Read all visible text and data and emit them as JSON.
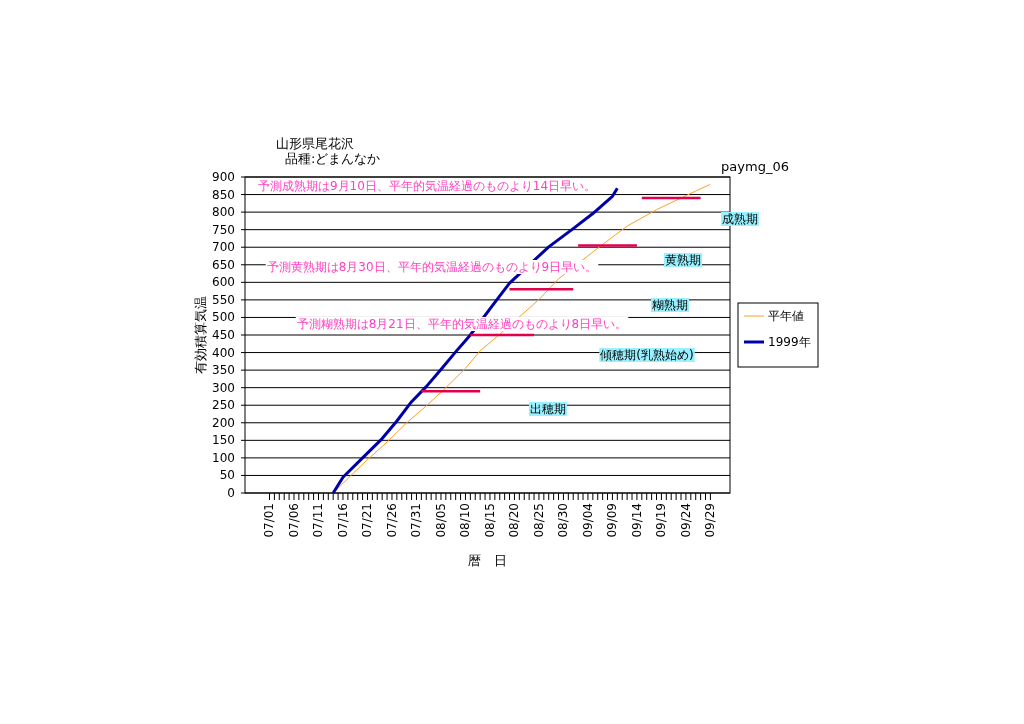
{
  "chart_data": {
    "type": "line",
    "title": "山形県尾花沢",
    "subtitle": "品種:どまんなか",
    "xlabel": "暦　日",
    "ylabel": "有効積算気温",
    "annotations": [
      "paymg_06",
      "予測成熟期は9月10日、平年的気温経過のものより14日早い。",
      "予測黄熟期は8月30日、平年的気温経過のものより9日早い。",
      "予測糊熟期は8月21日、平年的気温経過のものより8日早い。",
      "出穂期",
      "傾穂期(乳熟始め)",
      "糊熟期",
      "黄熟期",
      "成熟期"
    ],
    "xlim": [
      "--06-26",
      "--10-03"
    ],
    "ylim": [
      0,
      900
    ],
    "yticks": [
      0,
      50,
      100,
      150,
      200,
      250,
      300,
      350,
      400,
      450,
      500,
      550,
      600,
      650,
      700,
      750,
      800,
      850,
      900
    ],
    "xticks": [
      {
        "value": "--07-01",
        "label": "07/01"
      },
      {
        "value": "--07-02",
        "label": null
      },
      {
        "value": "--07-03",
        "label": null
      },
      {
        "value": "--07-04",
        "label": null
      },
      {
        "value": "--07-05",
        "label": null
      },
      {
        "value": "--07-06",
        "label": "07/06"
      },
      {
        "value": "--07-07",
        "label": null
      },
      {
        "value": "--07-08",
        "label": null
      },
      {
        "value": "--07-09",
        "label": null
      },
      {
        "value": "--07-10",
        "label": null
      },
      {
        "value": "--07-11",
        "label": "07/11"
      },
      {
        "value": "--07-12",
        "label": null
      },
      {
        "value": "--07-13",
        "label": null
      },
      {
        "value": "--07-14",
        "label": null
      },
      {
        "value": "--07-15",
        "label": null
      },
      {
        "value": "--07-16",
        "label": "07/16"
      },
      {
        "value": "--07-17",
        "label": null
      },
      {
        "value": "--07-18",
        "label": null
      },
      {
        "value": "--07-19",
        "label": null
      },
      {
        "value": "--07-20",
        "label": null
      },
      {
        "value": "--07-21",
        "label": "07/21"
      },
      {
        "value": "--07-22",
        "label": null
      },
      {
        "value": "--07-23",
        "label": null
      },
      {
        "value": "--07-24",
        "label": null
      },
      {
        "value": "--07-25",
        "label": null
      },
      {
        "value": "--07-26",
        "label": "07/26"
      },
      {
        "value": "--07-27",
        "label": null
      },
      {
        "value": "--07-28",
        "label": null
      },
      {
        "value": "--07-29",
        "label": null
      },
      {
        "value": "--07-30",
        "label": null
      },
      {
        "value": "--07-31",
        "label": "07/31"
      },
      {
        "value": "--08-01",
        "label": null
      },
      {
        "value": "--08-02",
        "label": null
      },
      {
        "value": "--08-03",
        "label": null
      },
      {
        "value": "--08-04",
        "label": null
      },
      {
        "value": "--08-05",
        "label": "08/05"
      },
      {
        "value": "--08-06",
        "label": null
      },
      {
        "value": "--08-07",
        "label": null
      },
      {
        "value": "--08-08",
        "label": null
      },
      {
        "value": "--08-09",
        "label": null
      },
      {
        "value": "--08-10",
        "label": "08/10"
      },
      {
        "value": "--08-11",
        "label": null
      },
      {
        "value": "--08-12",
        "label": null
      },
      {
        "value": "--08-13",
        "label": null
      },
      {
        "value": "--08-14",
        "label": null
      },
      {
        "value": "--08-15",
        "label": "08/15"
      },
      {
        "value": "--08-16",
        "label": null
      },
      {
        "value": "--08-17",
        "label": null
      },
      {
        "value": "--08-18",
        "label": null
      },
      {
        "value": "--08-19",
        "label": null
      },
      {
        "value": "--08-20",
        "label": "08/20"
      },
      {
        "value": "--08-21",
        "label": null
      },
      {
        "value": "--08-22",
        "label": null
      },
      {
        "value": "--08-23",
        "label": null
      },
      {
        "value": "--08-24",
        "label": null
      },
      {
        "value": "--08-25",
        "label": "08/25"
      },
      {
        "value": "--08-26",
        "label": null
      },
      {
        "value": "--08-27",
        "label": null
      },
      {
        "value": "--08-28",
        "label": null
      },
      {
        "value": "--08-29",
        "label": null
      },
      {
        "value": "--08-30",
        "label": "08/30"
      },
      {
        "value": "--08-31",
        "label": null
      },
      {
        "value": "--09-01",
        "label": null
      },
      {
        "value": "--09-02",
        "label": null
      },
      {
        "value": "--09-03",
        "label": null
      },
      {
        "value": "--09-04",
        "label": "09/04"
      },
      {
        "value": "--09-05",
        "label": null
      },
      {
        "value": "--09-06",
        "label": null
      },
      {
        "value": "--09-07",
        "label": null
      },
      {
        "value": "--09-08",
        "label": null
      },
      {
        "value": "--09-09",
        "label": "09/09"
      },
      {
        "value": "--09-10",
        "label": null
      },
      {
        "value": "--09-11",
        "label": null
      },
      {
        "value": "--09-12",
        "label": null
      },
      {
        "value": "--09-13",
        "label": null
      },
      {
        "value": "--09-14",
        "label": "09/14"
      },
      {
        "value": "--09-15",
        "label": null
      },
      {
        "value": "--09-16",
        "label": null
      },
      {
        "value": "--09-17",
        "label": null
      },
      {
        "value": "--09-18",
        "label": null
      },
      {
        "value": "--09-19",
        "label": "09/19"
      },
      {
        "value": "--09-20",
        "label": null
      },
      {
        "value": "--09-21",
        "label": null
      },
      {
        "value": "--09-22",
        "label": null
      },
      {
        "value": "--09-23",
        "label": null
      },
      {
        "value": "--09-24",
        "label": "09/24"
      },
      {
        "value": "--09-25",
        "label": null
      },
      {
        "value": "--09-26",
        "label": null
      },
      {
        "value": "--09-27",
        "label": null
      },
      {
        "value": "--09-28",
        "label": null
      },
      {
        "value": "--09-29",
        "label": "09/29"
      }
    ],
    "grid": "y",
    "legend": "right",
    "series": [
      {
        "name": "平年値",
        "color": "#ffa020",
        "x": [
          "--07-14",
          "--07-18",
          "--07-21",
          "--07-25",
          "--07-29",
          "--08-02",
          "--08-06",
          "--08-10",
          "--08-13",
          "--08-17",
          "--08-25",
          "--08-29",
          "--09-07",
          "--09-12",
          "--09-18",
          "--09-26",
          "--09-29"
        ],
        "values": [
          0,
          55,
          95,
          145,
          200,
          248,
          300,
          355,
          405,
          452,
          551,
          610,
          708,
          760,
          807,
          860,
          879
        ]
      },
      {
        "name": "1999年",
        "color": "#0000a8",
        "x": [
          "--07-14",
          "--07-16",
          "--07-20",
          "--07-24",
          "--07-27",
          "--07-30",
          "--08-02",
          "--08-05",
          "--08-08",
          "--08-11",
          "--08-16",
          "--08-19",
          "--08-27",
          "--09-01",
          "--09-05",
          "--09-09",
          "--09-10"
        ],
        "values": [
          0,
          45,
          100,
          155,
          205,
          260,
          303,
          352,
          402,
          450,
          543,
          598,
          701,
          753,
          796,
          845,
          868
        ]
      },
      {
        "color": "#e0004c",
        "x": [
          "--08-01",
          "--08-13"
        ],
        "values": [
          290,
          290
        ]
      },
      {
        "color": "#e0004c",
        "x": [
          "--08-11",
          "--08-24"
        ],
        "values": [
          450,
          450
        ]
      },
      {
        "color": "#e0004c",
        "x": [
          "--08-19",
          "--09-01"
        ],
        "values": [
          580,
          580
        ]
      },
      {
        "color": "#e0004c",
        "x": [
          "--09-02",
          "--09-14"
        ],
        "values": [
          705,
          705
        ]
      },
      {
        "color": "#e0004c",
        "x": [
          "--09-15",
          "--09-27"
        ],
        "values": [
          840,
          840
        ]
      }
    ]
  }
}
